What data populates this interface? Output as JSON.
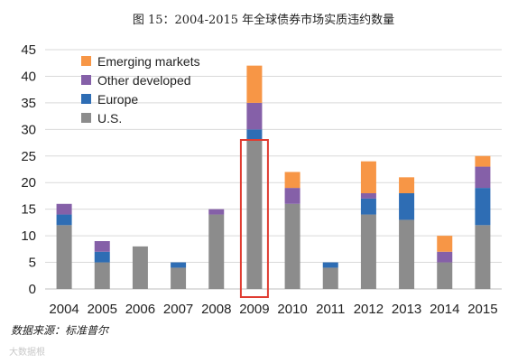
{
  "title": "图 15：2004-2015 年全球债券市场实质违约数量",
  "source_note": "数据来源：标准普尔",
  "watermark": "大数据根",
  "chart_data": {
    "type": "bar",
    "stacked": true,
    "title": "",
    "xlabel": "",
    "ylabel": "",
    "categories": [
      "2004",
      "2005",
      "2006",
      "2007",
      "2008",
      "2009",
      "2010",
      "2011",
      "2012",
      "2013",
      "2014",
      "2015"
    ],
    "ylim": [
      0,
      45
    ],
    "yticks": [
      0,
      5,
      10,
      15,
      20,
      25,
      30,
      35,
      40,
      45
    ],
    "grid": true,
    "legend_position": "top-left",
    "series": [
      {
        "name": "U.S.",
        "color": "#8c8c8c",
        "values": [
          12,
          5,
          8,
          4,
          14,
          28,
          16,
          4,
          14,
          13,
          5,
          12
        ]
      },
      {
        "name": "Europe",
        "color": "#2e6db4",
        "values": [
          2,
          2,
          0,
          1,
          0,
          2,
          0,
          1,
          3,
          5,
          0,
          7
        ]
      },
      {
        "name": "Other developed",
        "color": "#8560a8",
        "values": [
          2,
          2,
          0,
          0,
          1,
          5,
          3,
          0,
          1,
          0,
          2,
          4
        ]
      },
      {
        "name": "Emerging markets",
        "color": "#f79646",
        "values": [
          0,
          0,
          0,
          0,
          0,
          7,
          3,
          0,
          6,
          3,
          3,
          2
        ]
      }
    ],
    "legend_order": [
      "Emerging markets",
      "Other developed",
      "Europe",
      "U.S."
    ],
    "highlight": {
      "category": "2009",
      "color": "#e03c31"
    }
  }
}
